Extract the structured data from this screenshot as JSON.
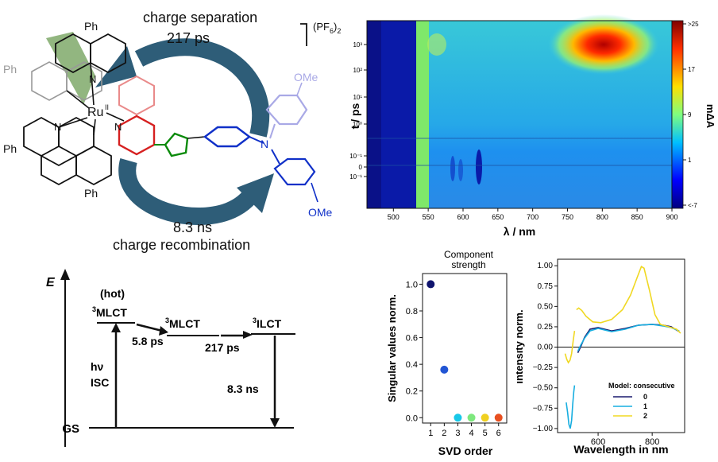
{
  "scheme": {
    "top_label_line1": "charge separation",
    "top_label_line2": "217 ps",
    "bottom_label_line1": "8.3 ns",
    "bottom_label_line2": "charge recombination",
    "counterion": "(PF",
    "counterion_sub": "6",
    "counterion_tail": ")",
    "counterion_sub2": "2",
    "metal": "Ru",
    "metal_charge": "II",
    "phenyl_labels": [
      "Ph",
      "Ph",
      "Ph",
      "Ph"
    ],
    "methoxy_labels": [
      "OMe",
      "OMe"
    ],
    "n_label": "N",
    "colors": {
      "ring_green": "#6e9e55",
      "arrow": "#2e5d78",
      "pyridine_pink": "#e98a8a",
      "pyridine_red": "#d62020",
      "triazole_green": "#0a8a0a",
      "amine_blue": "#1030c8",
      "anisyl_light": "#a9a9e6"
    }
  },
  "energy": {
    "axis_label": "E",
    "hot_label": "(hot)",
    "levels": [
      {
        "sup": "3",
        "name": "MLCT"
      },
      {
        "sup": "3",
        "name": "MLCT"
      },
      {
        "sup": "3",
        "name": "ILCT"
      }
    ],
    "gs_label": "GS",
    "excitation_label1": "hν",
    "excitation_label2": "ISC",
    "step_times": [
      "5.8 ps",
      "217 ps"
    ],
    "decay_time": "8.3 ns"
  },
  "chart_data": [
    {
      "type": "heatmap",
      "xlabel": "λ / nm",
      "ylabel": "t / ps",
      "x_ticks": [
        "500",
        "550",
        "600",
        "650",
        "700",
        "750",
        "800",
        "850",
        "900"
      ],
      "y_ticks": [
        "10³",
        "10²",
        "10¹",
        "10⁰",
        "10⁻¹",
        "0",
        "−10⁻¹"
      ],
      "colorbar_label": "mΔA",
      "colorbar_ticks": [
        ">25",
        "17",
        "9",
        "1",
        "<-7"
      ],
      "feature": {
        "peak_wavelength_nm": 755,
        "peak_time_ps": 1000,
        "note_value": ">25"
      }
    },
    {
      "type": "scatter",
      "title": "Component strength",
      "xlabel": "SVD order",
      "ylabel": "Singular values norm.",
      "x": [
        1,
        2,
        3,
        4,
        5,
        6
      ],
      "y": [
        1.0,
        0.36,
        0.0,
        0.0,
        0.0,
        0.0
      ],
      "colors": [
        "#10146e",
        "#2255d4",
        "#18c8e8",
        "#7ee87e",
        "#f0d020",
        "#e85020"
      ],
      "y_ticks": [
        "0.0",
        "0.2",
        "0.4",
        "0.6",
        "0.8",
        "1.0"
      ],
      "x_ticks": [
        "1",
        "2",
        "3",
        "4",
        "5",
        "6"
      ],
      "ylim": [
        -0.04,
        1.08
      ]
    },
    {
      "type": "line",
      "xlabel": "Wavelength in nm",
      "ylabel": "intensity norm.",
      "x_ticks": [
        "600",
        "800"
      ],
      "y_ticks": [
        "1.00",
        "0.75",
        "0.50",
        "0.25",
        "0.00",
        "−0.25",
        "−0.50",
        "−0.75",
        "−1.00"
      ],
      "xlim": [
        450,
        920
      ],
      "ylim": [
        -1.05,
        1.08
      ],
      "legend_title": "Model: consecutive",
      "legend_position": "bottom-right",
      "series": [
        {
          "name": "0",
          "color": "#1a1a6e",
          "segments": [
            [
              [
                525,
                -0.07
              ],
              [
                535,
                0.0
              ],
              [
                550,
                0.12
              ],
              [
                570,
                0.22
              ],
              [
                600,
                0.24
              ],
              [
                650,
                0.2
              ],
              [
                700,
                0.23
              ],
              [
                750,
                0.27
              ],
              [
                800,
                0.28
              ],
              [
                840,
                0.27
              ],
              [
                870,
                0.25
              ],
              [
                900,
                0.19
              ]
            ]
          ]
        },
        {
          "name": "1",
          "color": "#17aee0",
          "segments": [
            [
              [
                482,
                -0.68
              ],
              [
                487,
                -0.8
              ],
              [
                492,
                -0.95
              ],
              [
                497,
                -1.0
              ],
              [
                502,
                -0.9
              ],
              [
                506,
                -0.7
              ],
              [
                510,
                -0.55
              ],
              [
                513,
                -0.47
              ]
            ],
            [
              [
                525,
                -0.05
              ],
              [
                535,
                0.02
              ],
              [
                550,
                0.11
              ],
              [
                570,
                0.2
              ],
              [
                600,
                0.23
              ],
              [
                650,
                0.19
              ],
              [
                700,
                0.22
              ],
              [
                750,
                0.27
              ],
              [
                800,
                0.28
              ],
              [
                840,
                0.26
              ],
              [
                870,
                0.24
              ],
              [
                900,
                0.2
              ]
            ]
          ]
        },
        {
          "name": "2",
          "color": "#f0d822",
          "segments": [
            [
              [
                478,
                -0.08
              ],
              [
                484,
                -0.15
              ],
              [
                490,
                -0.19
              ],
              [
                496,
                -0.16
              ],
              [
                502,
                -0.08
              ],
              [
                508,
                0.08
              ],
              [
                513,
                0.2
              ]
            ],
            [
              [
                520,
                0.46
              ],
              [
                528,
                0.48
              ],
              [
                540,
                0.45
              ],
              [
                555,
                0.38
              ],
              [
                580,
                0.31
              ],
              [
                610,
                0.3
              ],
              [
                650,
                0.34
              ],
              [
                690,
                0.46
              ],
              [
                720,
                0.64
              ],
              [
                745,
                0.86
              ],
              [
                760,
                0.99
              ],
              [
                770,
                0.97
              ],
              [
                790,
                0.7
              ],
              [
                810,
                0.4
              ],
              [
                830,
                0.28
              ],
              [
                860,
                0.25
              ],
              [
                890,
                0.22
              ],
              [
                905,
                0.17
              ]
            ]
          ]
        }
      ]
    }
  ]
}
